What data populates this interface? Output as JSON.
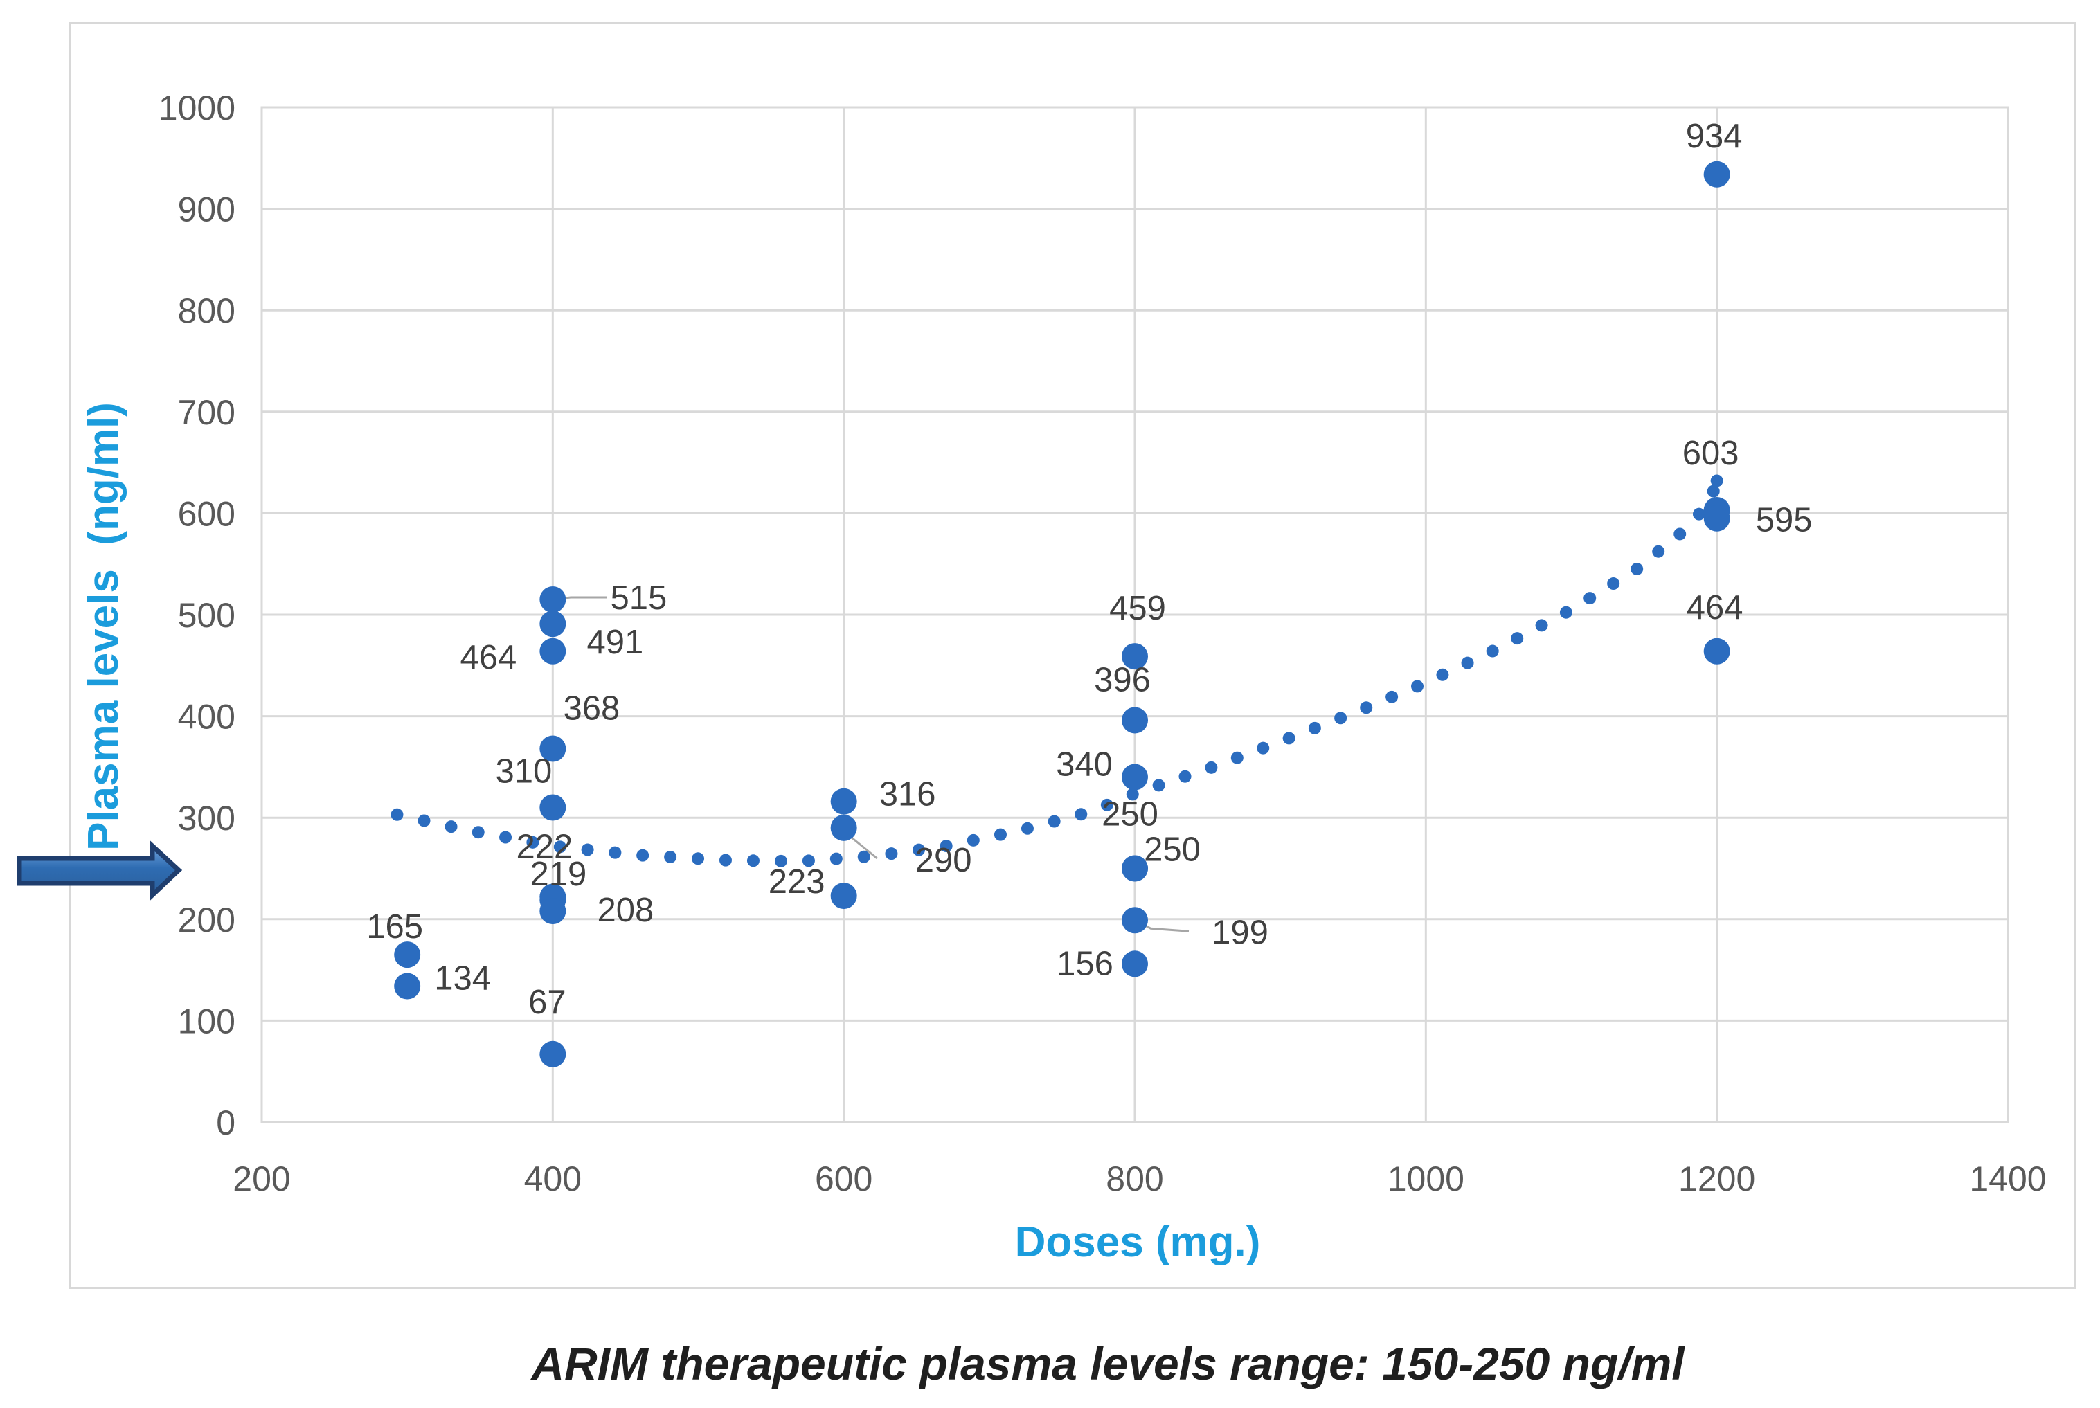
{
  "figure": {
    "caption": "ARIM therapeutic plasma levels range: 150-250 ng/ml"
  },
  "colors": {
    "point_blue": "#2B6CBF",
    "trend_blue": "#2B6CBF",
    "axis_title_blue": "#1B9CDC",
    "tick_gray": "#595959",
    "data_label_gray": "#404040",
    "grid_gray": "#D9D9D9",
    "leader_gray": "#A6A6A6",
    "arrow_fill_top": "#6FA3DC",
    "arrow_fill_mid": "#2E6CB2",
    "arrow_fill_bottom": "#2B5F9C",
    "arrow_stroke": "#1F3E6E",
    "caption_color": "#1F1F1F",
    "frame_gray": "#D8D8D8"
  },
  "chart_data": {
    "type": "scatter",
    "title": "",
    "xlabel": "Doses (mg.)",
    "ylabel": "Plasma levels  (ng/ml)",
    "xlim": [
      200,
      1400
    ],
    "ylim": [
      0,
      1000
    ],
    "xticks": [
      200,
      400,
      600,
      800,
      1000,
      1200,
      1400
    ],
    "yticks": [
      0,
      100,
      200,
      300,
      400,
      500,
      600,
      700,
      800,
      900,
      1000
    ],
    "grid": true,
    "legend": "none",
    "annotation_arrow": {
      "meaning": "points at therapeutic plasma level (~250 ng/ml)",
      "points_at_level": 250
    },
    "points": [
      {
        "dose": 300,
        "level": 165,
        "label": "165",
        "pos": [
          -18,
          -41
        ]
      },
      {
        "dose": 300,
        "level": 134,
        "label": "134",
        "pos": [
          80,
          -12
        ]
      },
      {
        "dose": 400,
        "level": 515,
        "label": "515",
        "pos": [
          124,
          -3
        ],
        "leader": [
          [
            26,
            -3
          ],
          [
            78,
            -3
          ]
        ]
      },
      {
        "dose": 400,
        "level": 491,
        "label": "491",
        "pos": [
          90,
          26
        ]
      },
      {
        "dose": 400,
        "level": 464,
        "label": "464",
        "pos": [
          -93,
          8
        ]
      },
      {
        "dose": 400,
        "level": 368,
        "label": "368",
        "pos": [
          56,
          -59
        ]
      },
      {
        "dose": 400,
        "level": 310,
        "label": "310",
        "pos": [
          -42,
          -53
        ]
      },
      {
        "dose": 400,
        "level": 222,
        "label": "222",
        "pos": [
          -12,
          -73
        ]
      },
      {
        "dose": 400,
        "level": 219,
        "label": "219",
        "pos": [
          8,
          -38
        ],
        "leader": [
          [
            4,
            -20
          ],
          [
            1,
            -4
          ]
        ]
      },
      {
        "dose": 400,
        "level": 208,
        "label": "208",
        "pos": [
          105,
          -2
        ]
      },
      {
        "dose": 400,
        "level": 67,
        "label": "67",
        "pos": [
          -8,
          -76
        ]
      },
      {
        "dose": 600,
        "level": 316,
        "label": "316",
        "pos": [
          92,
          -11
        ]
      },
      {
        "dose": 600,
        "level": 290,
        "label": "290",
        "pos": [
          144,
          46
        ],
        "leader": [
          [
            10,
            13
          ],
          [
            48,
            44
          ]
        ]
      },
      {
        "dose": 600,
        "level": 223,
        "label": "223",
        "pos": [
          -68,
          -21
        ]
      },
      {
        "dose": 800,
        "level": 459,
        "label": "459",
        "pos": [
          4,
          -70
        ]
      },
      {
        "dose": 800,
        "level": 396,
        "label": "396",
        "pos": [
          -18,
          -59
        ]
      },
      {
        "dose": 800,
        "level": 340,
        "label": "340",
        "pos": [
          -73,
          -19
        ]
      },
      {
        "dose": 800,
        "level": 250,
        "label": "250",
        "pos": [
          -7,
          -79
        ]
      },
      {
        "dose": 800,
        "level": 250,
        "label": "250",
        "pos": [
          54,
          -28
        ]
      },
      {
        "dose": 800,
        "level": 199,
        "label": "199",
        "pos": [
          152,
          17
        ],
        "leader": [
          [
            23,
            12
          ],
          [
            78,
            16
          ]
        ]
      },
      {
        "dose": 800,
        "level": 156,
        "label": "156",
        "pos": [
          -72,
          -1
        ]
      },
      {
        "dose": 1200,
        "level": 934,
        "label": "934",
        "pos": [
          -4,
          -56
        ]
      },
      {
        "dose": 1200,
        "level": 603,
        "label": "603",
        "pos": [
          -9,
          -83
        ]
      },
      {
        "dose": 1200,
        "level": 595,
        "label": "595",
        "pos": [
          97,
          2
        ]
      },
      {
        "dose": 1200,
        "level": 464,
        "label": "464",
        "pos": [
          -3,
          -64
        ]
      }
    ],
    "trend": {
      "style": "dotted",
      "dot_spacing": 40,
      "control": [
        [
          293,
          303
        ],
        [
          340,
          288
        ],
        [
          400,
          272
        ],
        [
          460,
          263
        ],
        [
          520,
          258
        ],
        [
          570,
          257
        ],
        [
          620,
          262
        ],
        [
          670,
          272
        ],
        [
          720,
          287
        ],
        [
          770,
          306
        ],
        [
          800,
          324
        ],
        [
          850,
          348
        ],
        [
          900,
          375
        ],
        [
          950,
          403
        ],
        [
          1000,
          433
        ],
        [
          1050,
          467
        ],
        [
          1100,
          505
        ],
        [
          1145,
          545
        ],
        [
          1175,
          580
        ],
        [
          1195,
          610
        ],
        [
          1200,
          632
        ]
      ]
    }
  }
}
